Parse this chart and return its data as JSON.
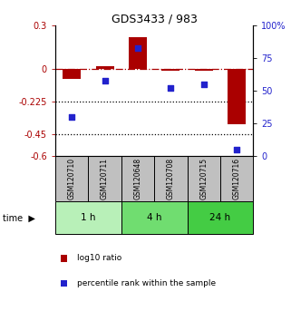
{
  "title": "GDS3433 / 983",
  "samples": [
    "GSM120710",
    "GSM120711",
    "GSM120648",
    "GSM120708",
    "GSM120715",
    "GSM120716"
  ],
  "log10_ratio": [
    -0.065,
    0.018,
    0.22,
    -0.01,
    -0.01,
    -0.38
  ],
  "percentile_rank": [
    30,
    58,
    83,
    52,
    55,
    5
  ],
  "groups": [
    {
      "label": "1 h",
      "indices": [
        0,
        1
      ],
      "color": "#b8f0b8"
    },
    {
      "label": "4 h",
      "indices": [
        2,
        3
      ],
      "color": "#70dd70"
    },
    {
      "label": "24 h",
      "indices": [
        4,
        5
      ],
      "color": "#44cc44"
    }
  ],
  "bar_color": "#aa0000",
  "dot_color": "#2222cc",
  "ylim_left": [
    -0.6,
    0.3
  ],
  "ylim_right": [
    0,
    100
  ],
  "yticks_left": [
    0.3,
    0.0,
    -0.225,
    -0.45,
    -0.6
  ],
  "ytick_labels_left": [
    "0.3",
    "0",
    "-0.225",
    "-0.45",
    "-0.6"
  ],
  "yticks_right": [
    100,
    75,
    50,
    25,
    0
  ],
  "ytick_labels_right": [
    "100%",
    "75",
    "50",
    "25",
    "0"
  ],
  "hlines": [
    -0.225,
    -0.45
  ],
  "legend_items": [
    "log10 ratio",
    "percentile rank within the sample"
  ],
  "legend_colors": [
    "#aa0000",
    "#2222cc"
  ],
  "time_label": "time",
  "header_bg": "#c0c0c0"
}
